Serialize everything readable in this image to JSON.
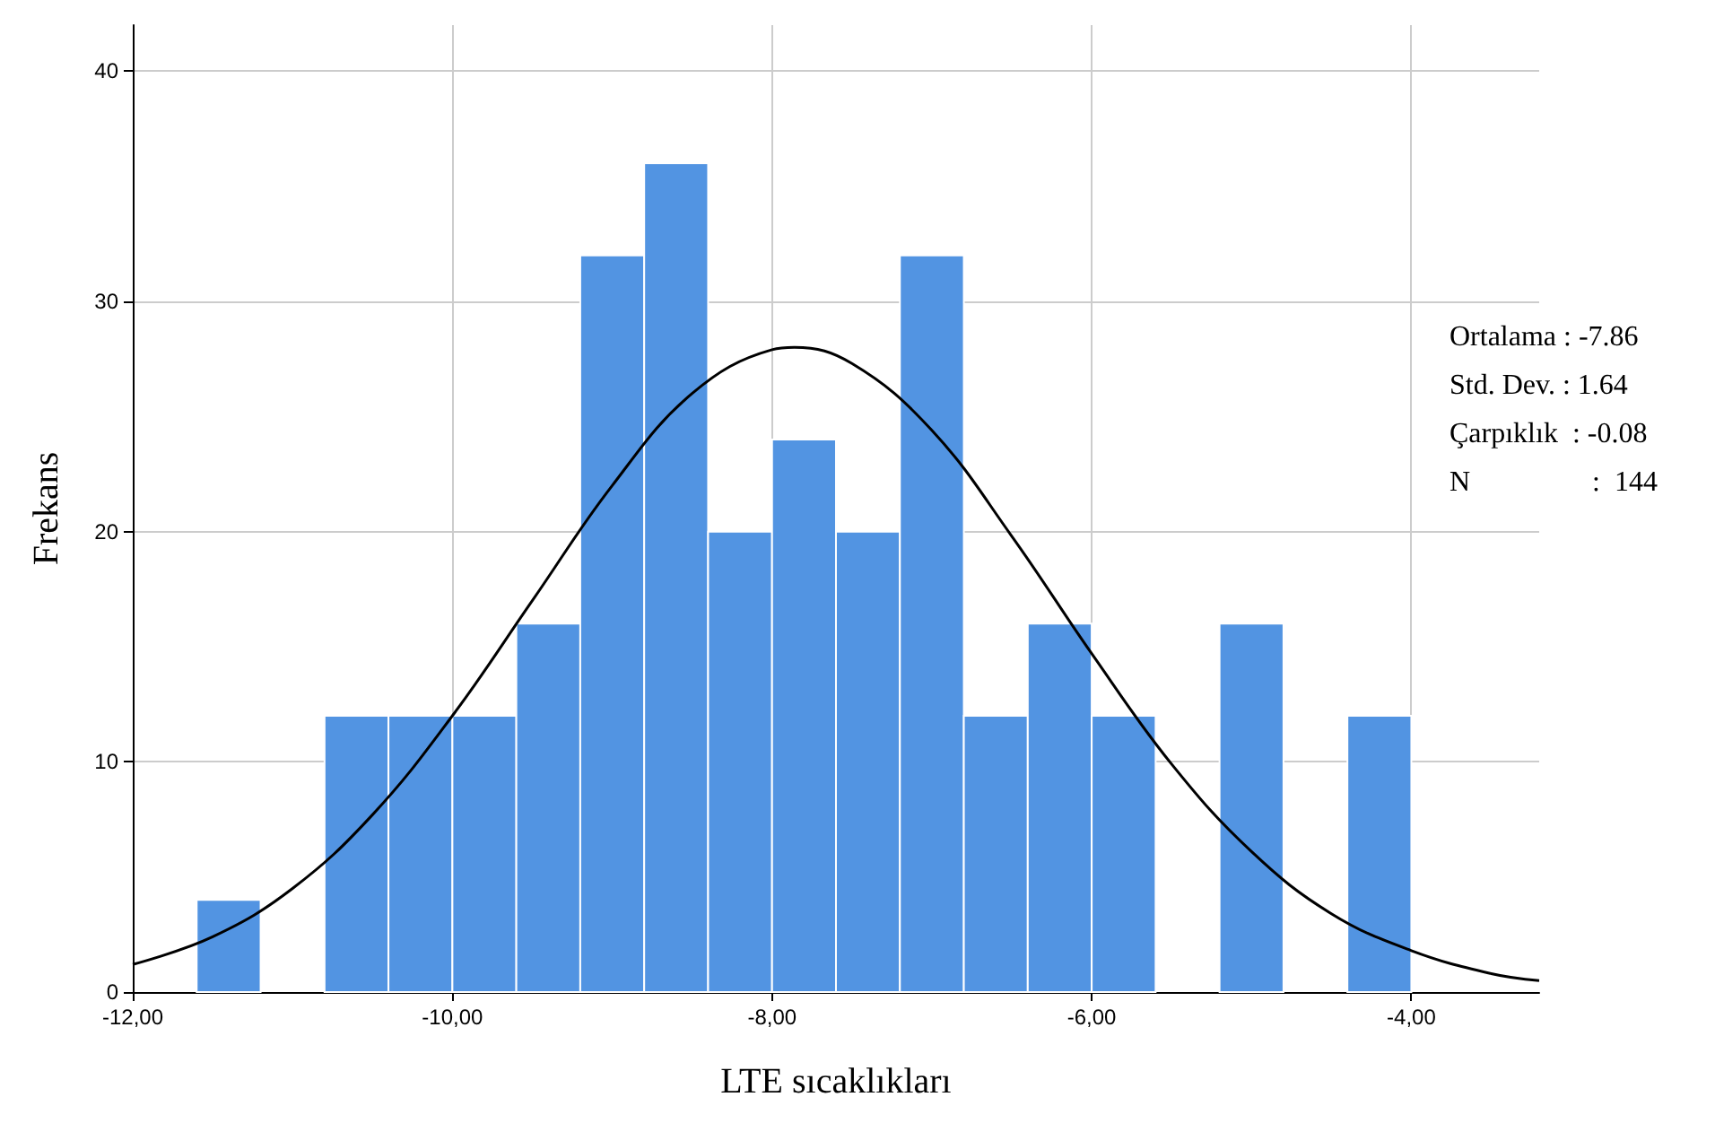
{
  "chart_data": {
    "type": "histogram",
    "xlabel": "LTE sıcaklıkları",
    "ylabel": "Frekans",
    "bins": [
      -11.6,
      -11.2,
      -10.8,
      -10.4,
      -10.0,
      -9.6,
      -9.2,
      -8.8,
      -8.4,
      -8.0,
      -7.6,
      -7.2,
      -6.8,
      -6.4,
      -6.0,
      -5.6,
      -5.2,
      -4.8,
      -4.4,
      -4.0
    ],
    "values": [
      4,
      0,
      12,
      12,
      12,
      16,
      32,
      36,
      20,
      24,
      20,
      32,
      12,
      16,
      12,
      0,
      16,
      0,
      12
    ],
    "color": "#5294e2",
    "series": [
      {
        "type": "line",
        "color": "#000000",
        "x": [
          -12,
          -11.5,
          -11,
          -10.5,
          -10,
          -9.5,
          -9,
          -8.5,
          -8,
          -7.86,
          -7.5,
          -7,
          -6.5,
          -6,
          -5.5,
          -5,
          -4.5,
          -4,
          -3.5,
          -3.2
        ],
        "values": [
          1.2,
          2.4,
          4.5,
          7.7,
          12.0,
          17.0,
          22.0,
          26.0,
          27.9,
          28.0,
          27.3,
          24.4,
          19.8,
          14.7,
          9.9,
          6.1,
          3.4,
          1.8,
          0.8,
          0.5
        ]
      }
    ],
    "xlim": [
      -12,
      -3.2
    ],
    "ylim": [
      0,
      42
    ],
    "xticks": [
      {
        "value": -12,
        "label": "-12,00"
      },
      {
        "value": -10,
        "label": "-10,00"
      },
      {
        "value": -8,
        "label": "-8,00"
      },
      {
        "value": -6,
        "label": "-6,00"
      },
      {
        "value": -4,
        "label": "-4,00"
      }
    ],
    "yticks": [
      0,
      10,
      20,
      30,
      40
    ],
    "grid": true,
    "annotations": [
      "Ortalama : -7.86",
      "Std. Dev. : 1.64",
      "Çarpıklık  : -0.08",
      "N                 :  144"
    ]
  }
}
